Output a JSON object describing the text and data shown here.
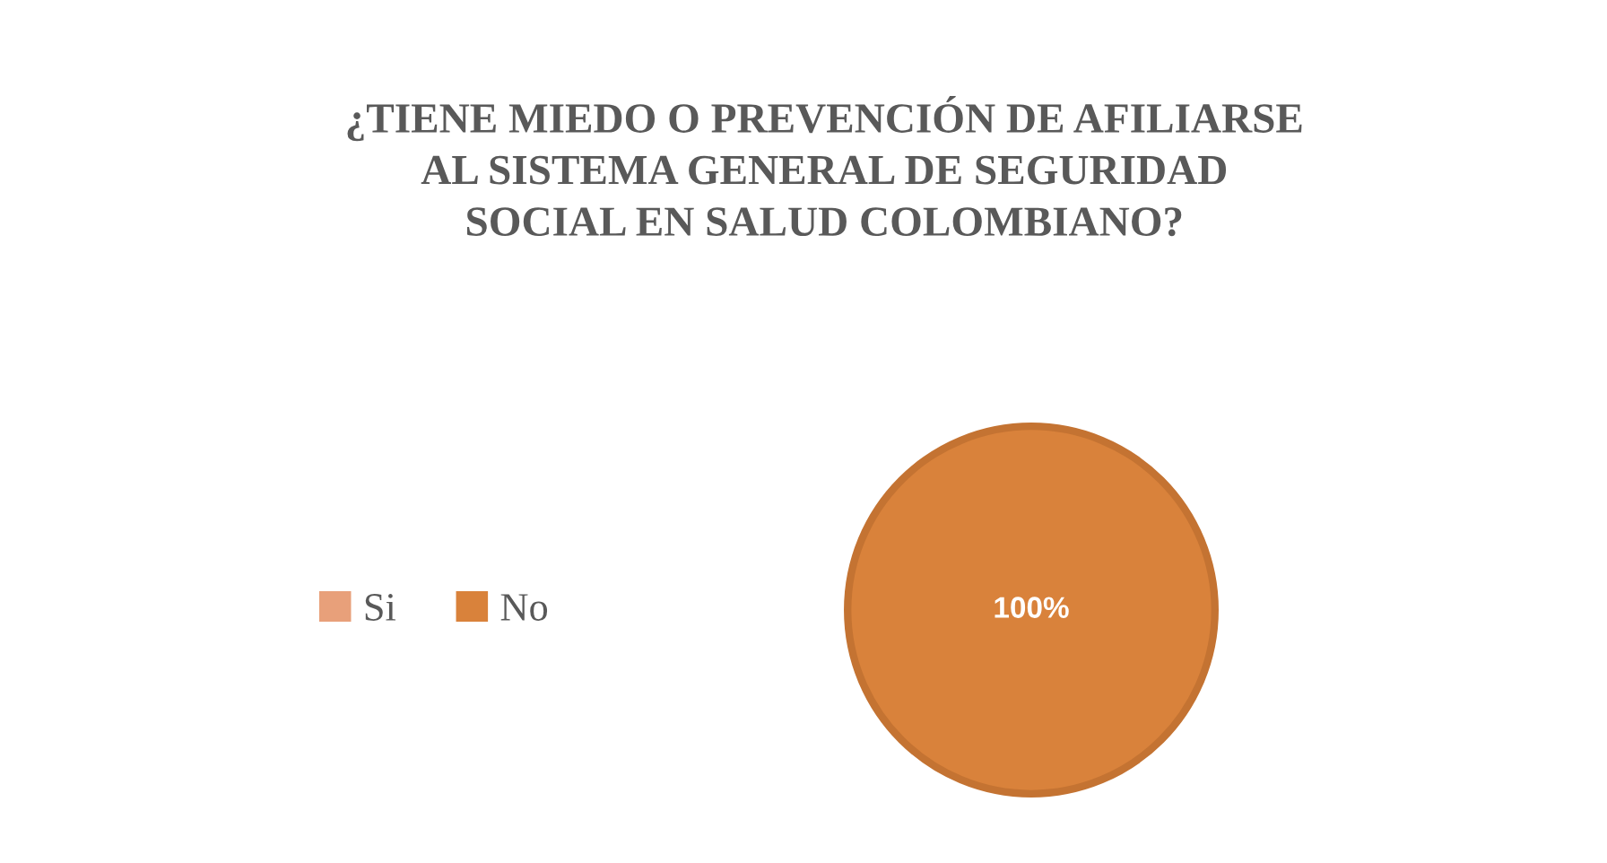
{
  "chart_data": {
    "type": "pie",
    "title": "¿TIENE MIEDO O PREVENCIÓN DE AFILIARSE\nAL SISTEMA GENERAL DE SEGURIDAD\nSOCIAL EN SALUD COLOMBIANO?",
    "categories": [
      "Si",
      "No"
    ],
    "values": [
      0,
      100
    ],
    "colors": [
      "#e8a07a",
      "#d9823b"
    ],
    "value_labels": [
      null,
      "100%"
    ],
    "legend": "left"
  }
}
